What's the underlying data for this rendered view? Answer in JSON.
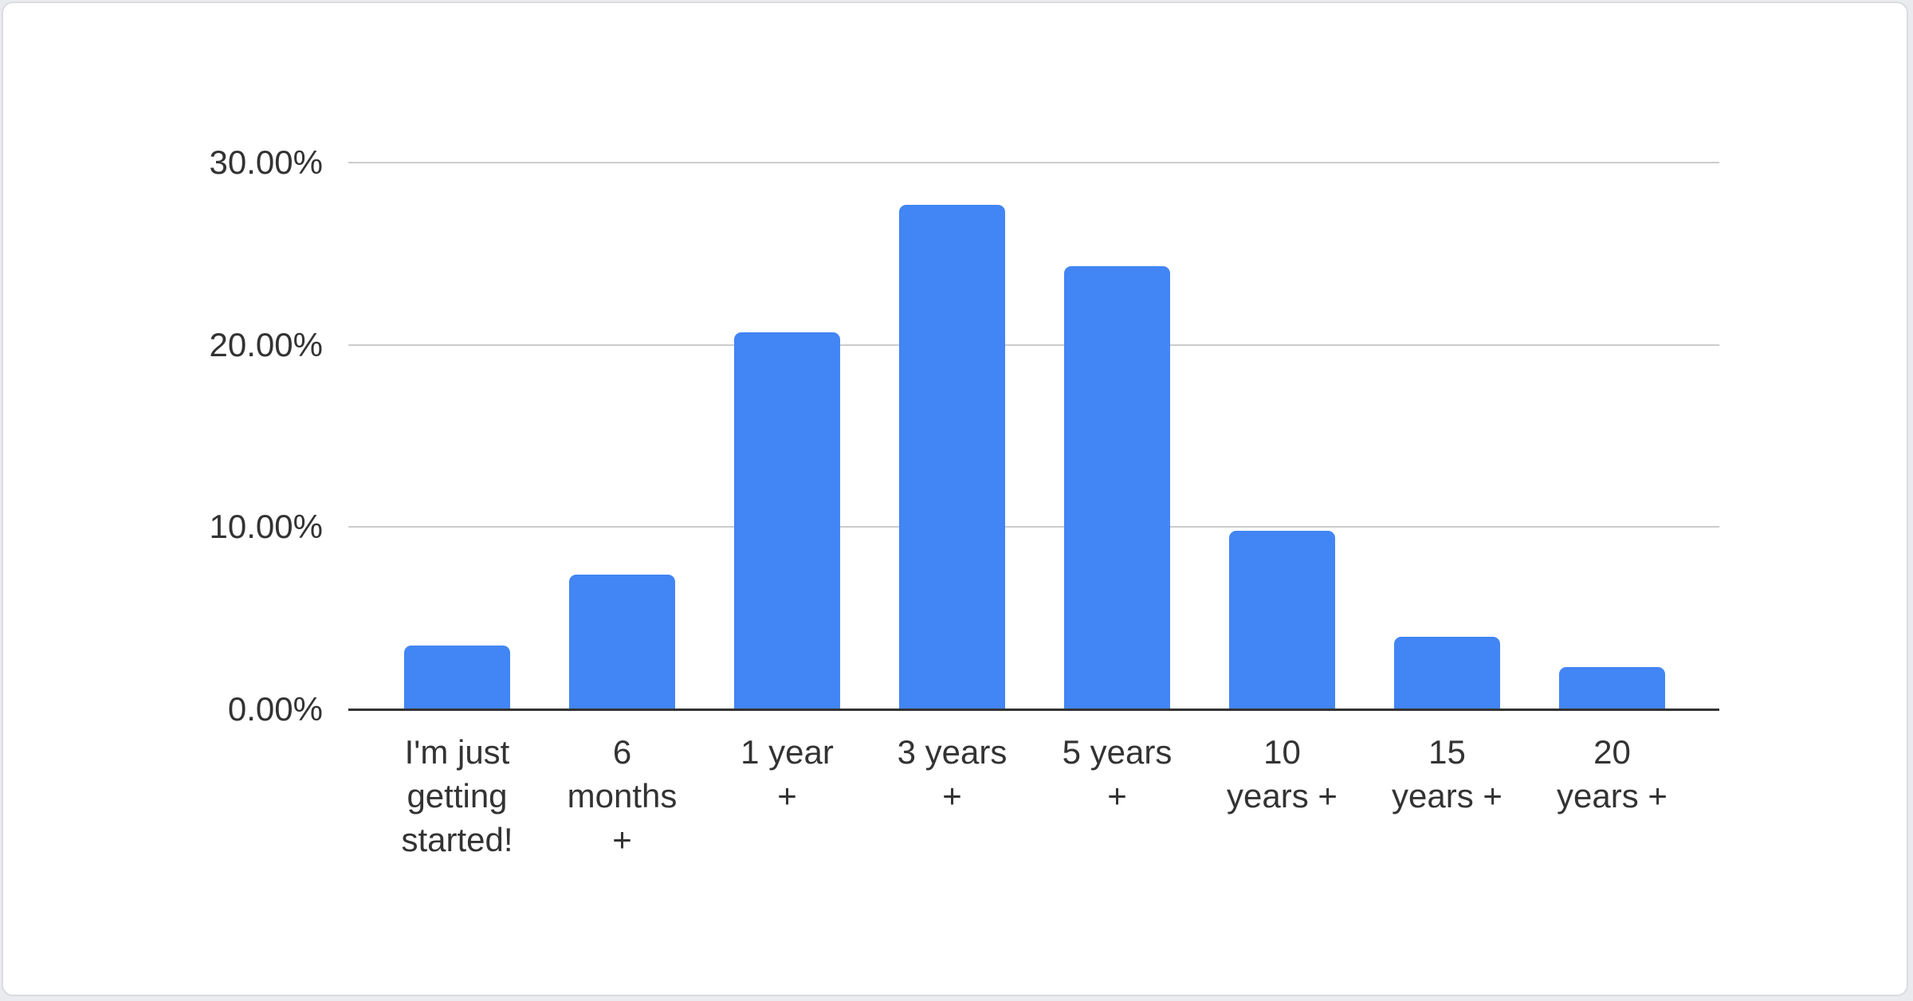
{
  "chart_data": {
    "type": "bar",
    "title": "",
    "xlabel": "",
    "ylabel": "",
    "unit": "%",
    "categories": [
      "I'm just getting started!",
      "6 months +",
      "1 year +",
      "3 years +",
      "5 years +",
      "10 years +",
      "15 years +",
      "20 years +"
    ],
    "category_lines": [
      [
        "I'm just",
        "getting",
        "started!"
      ],
      [
        "6",
        "months",
        "+"
      ],
      [
        "1 year",
        "+"
      ],
      [
        "3 years",
        "+"
      ],
      [
        "5 years",
        "+"
      ],
      [
        "10",
        "years +"
      ],
      [
        "15",
        "years +"
      ],
      [
        "20",
        "years +"
      ]
    ],
    "values": [
      3.5,
      7.4,
      20.7,
      27.7,
      24.3,
      9.8,
      4.0,
      2.3
    ],
    "ylim": [
      0,
      30
    ],
    "y_ticks": [
      {
        "value": 0,
        "label": "0.00%"
      },
      {
        "value": 10,
        "label": "10.00%"
      },
      {
        "value": 20,
        "label": "20.00%"
      },
      {
        "value": 30,
        "label": "30.00%"
      }
    ],
    "grid": true,
    "legend": "none",
    "colors": {
      "bar": "#4285f4",
      "gridline": "#cccccc",
      "axis_line": "#333333",
      "text": "#333333"
    }
  }
}
